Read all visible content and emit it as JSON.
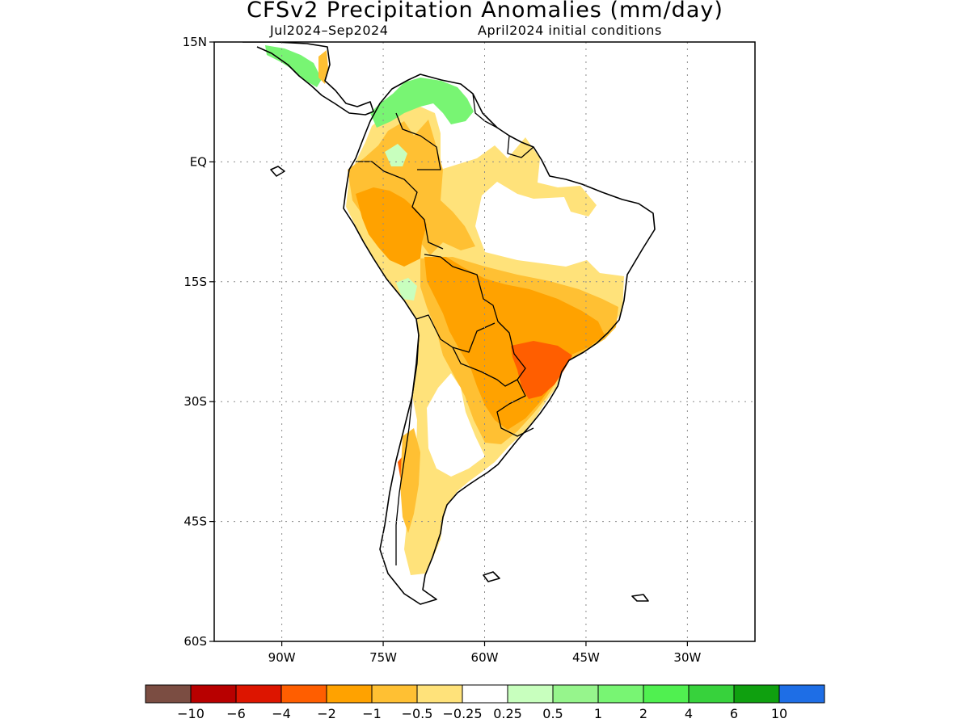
{
  "title": "CFSv2 Precipitation Anomalies (mm/day)",
  "subtitle_left": "Jul2024–Sep2024",
  "subtitle_right": "April2024 initial conditions",
  "map": {
    "lon_range": [
      -100,
      -20
    ],
    "lat_range": [
      -60,
      15
    ],
    "lat_ticks": [
      {
        "value": 15,
        "label": "15N"
      },
      {
        "value": 0,
        "label": "EQ"
      },
      {
        "value": -15,
        "label": "15S"
      },
      {
        "value": -30,
        "label": "30S"
      },
      {
        "value": -45,
        "label": "45S"
      },
      {
        "value": -60,
        "label": "60S"
      }
    ],
    "lon_ticks": [
      {
        "value": -90,
        "label": "90W"
      },
      {
        "value": -75,
        "label": "75W"
      },
      {
        "value": -60,
        "label": "60W"
      },
      {
        "value": -45,
        "label": "45W"
      },
      {
        "value": -30,
        "label": "30W"
      }
    ],
    "grid": "dotted"
  },
  "colorbar": {
    "colors": [
      "#7b4d42",
      "#b80000",
      "#dd1500",
      "#ff5e00",
      "#ffa200",
      "#ffc033",
      "#ffe27a",
      "#ffffff",
      "#c8ffbe",
      "#96f58c",
      "#78f573",
      "#50f050",
      "#37d23c",
      "#0fa00f",
      "#1e6ee6"
    ],
    "labels": [
      "−10",
      "−6",
      "−4",
      "−2",
      "−1",
      "−0.5",
      "−0.25",
      "0.25",
      "0.5",
      "1",
      "2",
      "4",
      "6",
      "10"
    ]
  }
}
